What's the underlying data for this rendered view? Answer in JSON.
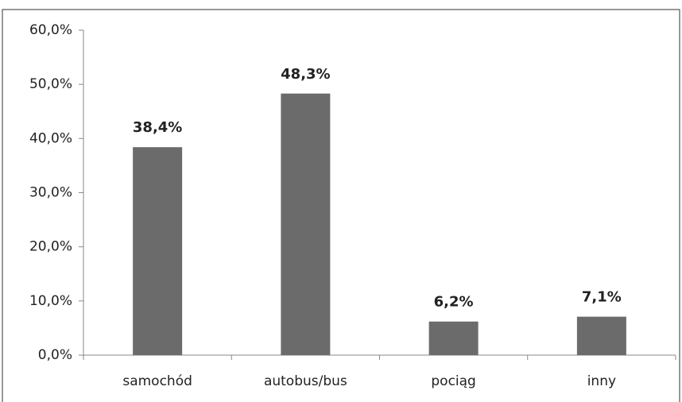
{
  "chart_data": {
    "type": "bar",
    "categories": [
      "samochód",
      "autobus/bus",
      "pociąg",
      "inny"
    ],
    "values": [
      38.4,
      48.3,
      6.2,
      7.1
    ],
    "value_labels": [
      "38,4%",
      "48,3%",
      "6,2%",
      "7,1%"
    ],
    "color": "#6b6b6b",
    "ylim": [
      0,
      60
    ],
    "yticks": [
      {
        "value": 0,
        "label": "0,0%"
      },
      {
        "value": 10,
        "label": "10,0%"
      },
      {
        "value": 20,
        "label": "20,0%"
      },
      {
        "value": 30,
        "label": "30,0%"
      },
      {
        "value": 40,
        "label": "40,0%"
      },
      {
        "value": 50,
        "label": "50,0%"
      },
      {
        "value": 60,
        "label": "60,0%"
      }
    ],
    "grid": false
  }
}
